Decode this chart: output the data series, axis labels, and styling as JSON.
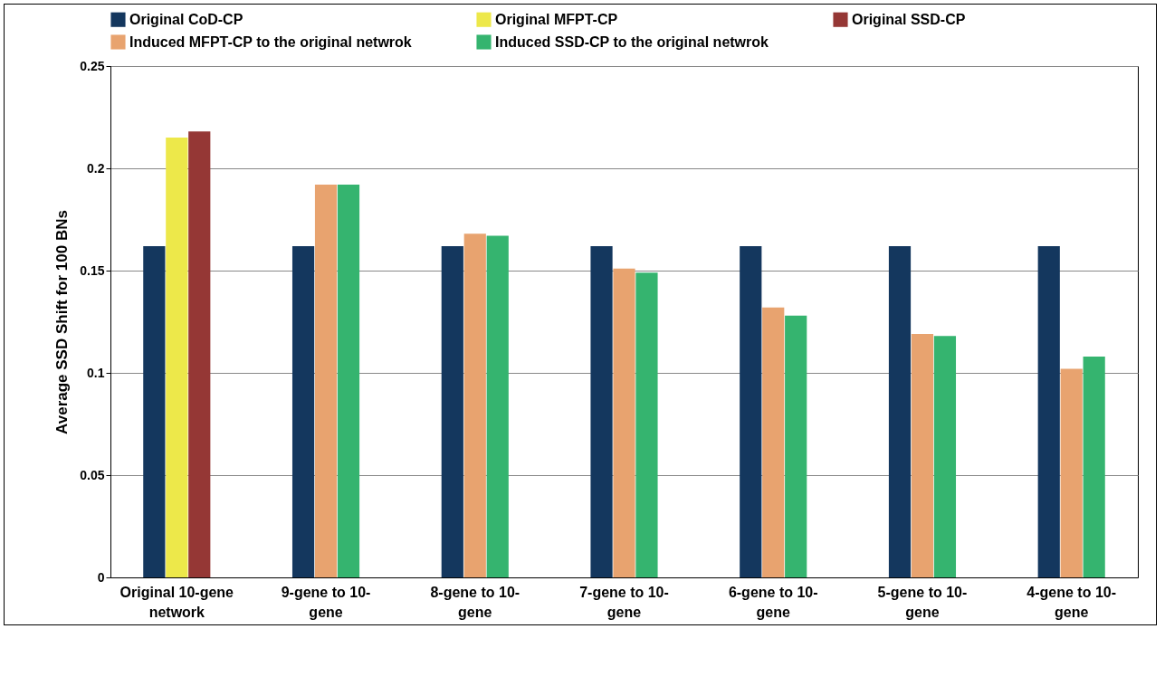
{
  "chart_data": {
    "type": "bar",
    "ylabel": "Average SSD Shift for 100 BNs",
    "categories": [
      "Original 10-gene network",
      "9-gene to 10-gene",
      "8-gene to 10-gene",
      "7-gene to 10-gene",
      "6-gene to 10-gene",
      "5-gene to 10-gene",
      "4-gene to 10-gene"
    ],
    "series": [
      {
        "name": "Original CoD-CP",
        "color": "#14375e",
        "values": [
          0.162,
          0.162,
          0.162,
          0.162,
          0.162,
          0.162,
          0.162
        ]
      },
      {
        "name": "Original MFPT-CP",
        "color": "#ede84a",
        "values": [
          0.215,
          null,
          null,
          null,
          null,
          null,
          null
        ]
      },
      {
        "name": "Original SSD-CP",
        "color": "#953735",
        "values": [
          0.218,
          null,
          null,
          null,
          null,
          null,
          null
        ]
      },
      {
        "name": "Induced MFPT-CP to the original netwrok",
        "color": "#e8a36f",
        "values": [
          null,
          0.192,
          0.168,
          0.151,
          0.132,
          0.119,
          0.102
        ]
      },
      {
        "name": "Induced SSD-CP to the original netwrok",
        "color": "#35b46f",
        "values": [
          null,
          0.192,
          0.167,
          0.149,
          0.128,
          0.118,
          0.108
        ]
      }
    ],
    "ylim": [
      0,
      0.25
    ],
    "yticks": [
      0,
      0.05,
      0.1,
      0.15,
      0.2,
      0.25
    ],
    "grid": "y",
    "legend": "top"
  }
}
